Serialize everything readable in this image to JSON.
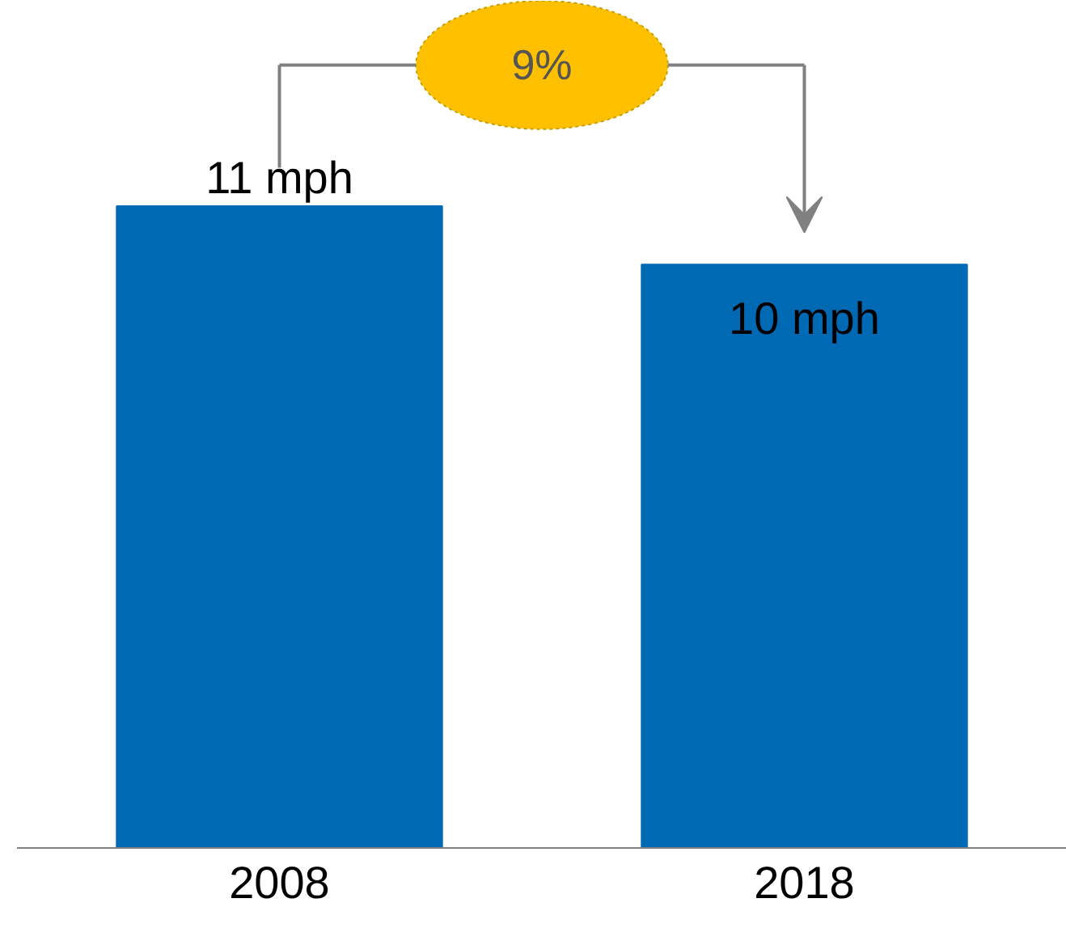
{
  "chart_data": {
    "type": "bar",
    "categories": [
      "2008",
      "2018"
    ],
    "values": [
      11,
      10
    ],
    "color": "#0069b4",
    "value_labels": [
      "11 mph",
      "10 mph"
    ],
    "annotations": [
      "9%"
    ]
  }
}
